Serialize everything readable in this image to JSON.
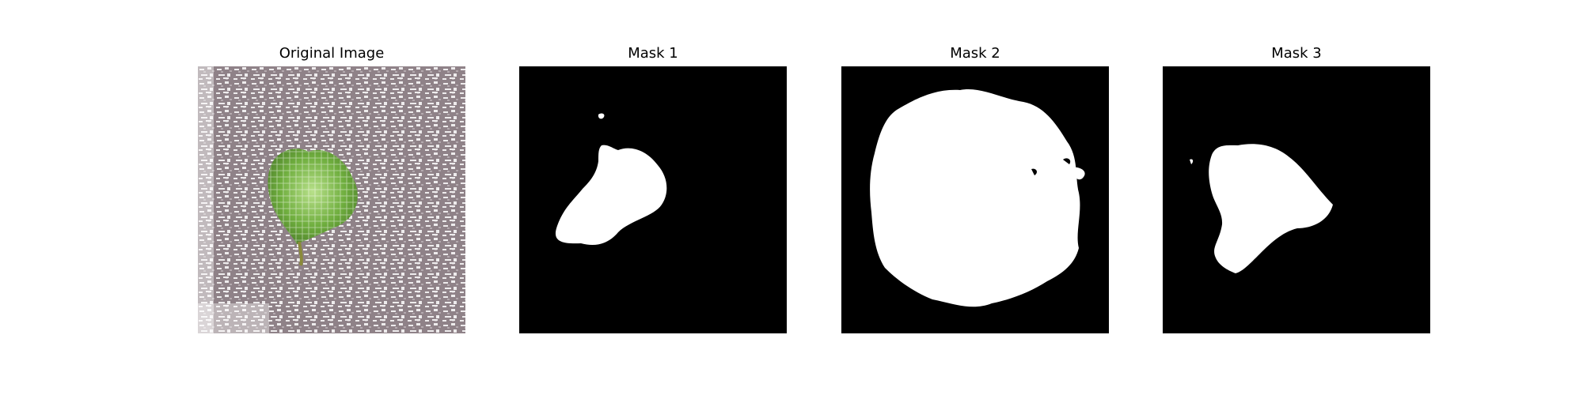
{
  "figure": {
    "panels": [
      {
        "title": "Original Image",
        "kind": "photo"
      },
      {
        "title": "Mask 1",
        "kind": "mask"
      },
      {
        "title": "Mask 2",
        "kind": "mask"
      },
      {
        "title": "Mask 3",
        "kind": "mask"
      }
    ]
  },
  "colors": {
    "mask_background": "#000000",
    "mask_foreground": "#ffffff",
    "ground": "#8f8288",
    "ground_light": "#ffffff",
    "leaf": "#6fae3e",
    "leaf_light": "#b8e08a"
  }
}
